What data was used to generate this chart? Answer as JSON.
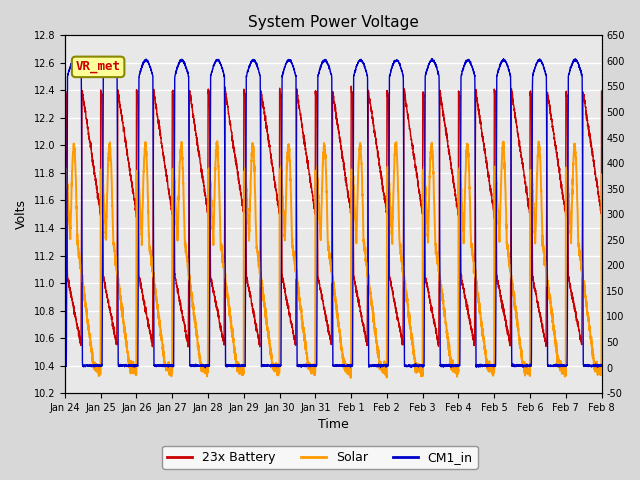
{
  "title": "System Power Voltage",
  "xlabel": "Time",
  "ylabel_left": "Volts",
  "ylim_left": [
    10.2,
    12.8
  ],
  "ylim_right": [
    -50,
    650
  ],
  "yticks_left": [
    10.2,
    10.4,
    10.6,
    10.8,
    11.0,
    11.2,
    11.4,
    11.6,
    11.8,
    12.0,
    12.2,
    12.4,
    12.6,
    12.8
  ],
  "yticks_right": [
    -50,
    0,
    50,
    100,
    150,
    200,
    250,
    300,
    350,
    400,
    450,
    500,
    550,
    600,
    650
  ],
  "xtick_labels": [
    "Jan 24",
    "Jan 25",
    "Jan 26",
    "Jan 27",
    "Jan 28",
    "Jan 29",
    "Jan 30",
    "Jan 31",
    "Feb 1",
    "Feb 2",
    "Feb 3",
    "Feb 4",
    "Feb 5",
    "Feb 6",
    "Feb 7",
    "Feb 8"
  ],
  "legend_entries": [
    "23x Battery",
    "Solar",
    "CM1_in"
  ],
  "battery_color": "#cc0000",
  "solar_color": "#ff9900",
  "cm1_color": "#0000cc",
  "annotation_text": "VR_met",
  "annotation_color": "#cc0000",
  "annotation_bg": "#ffff99",
  "annotation_border": "#888800",
  "background_color": "#e8e8e8",
  "grid_color": "#ffffff",
  "num_days": 15,
  "day_points": 288
}
